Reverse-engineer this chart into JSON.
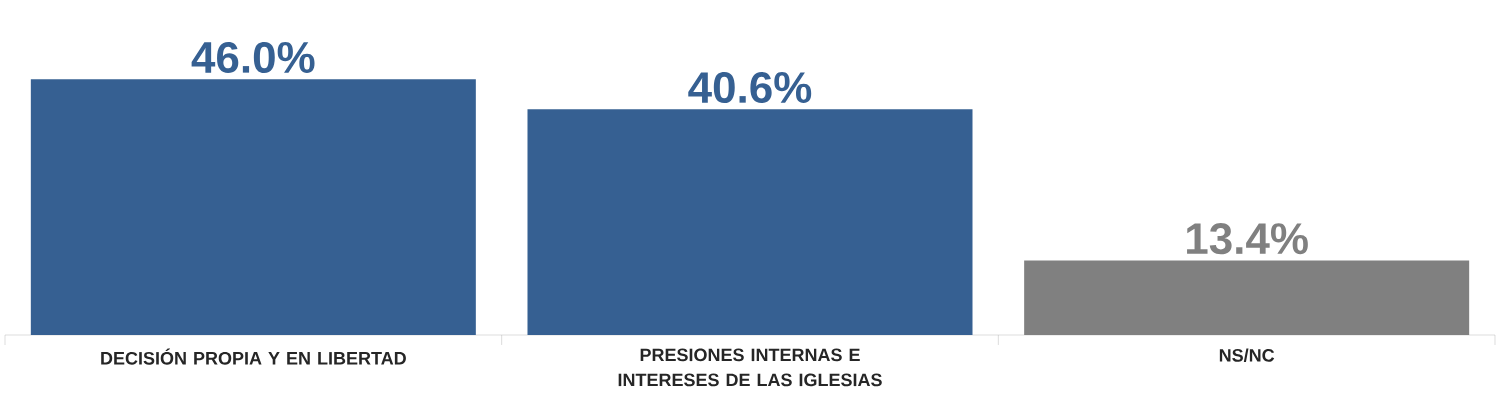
{
  "chart_data": {
    "type": "bar",
    "categories": [
      "DECISIÓN PROPIA Y EN LIBERTAD",
      "PRESIONES INTERNAS E INTERESES DE LAS IGLESIAS",
      "NS/NC"
    ],
    "values": [
      46.0,
      40.6,
      13.4
    ],
    "colors": [
      "#366092",
      "#366092",
      "#808080"
    ],
    "value_labels": [
      "46.0%",
      "40.6%",
      "13.4%"
    ]
  }
}
